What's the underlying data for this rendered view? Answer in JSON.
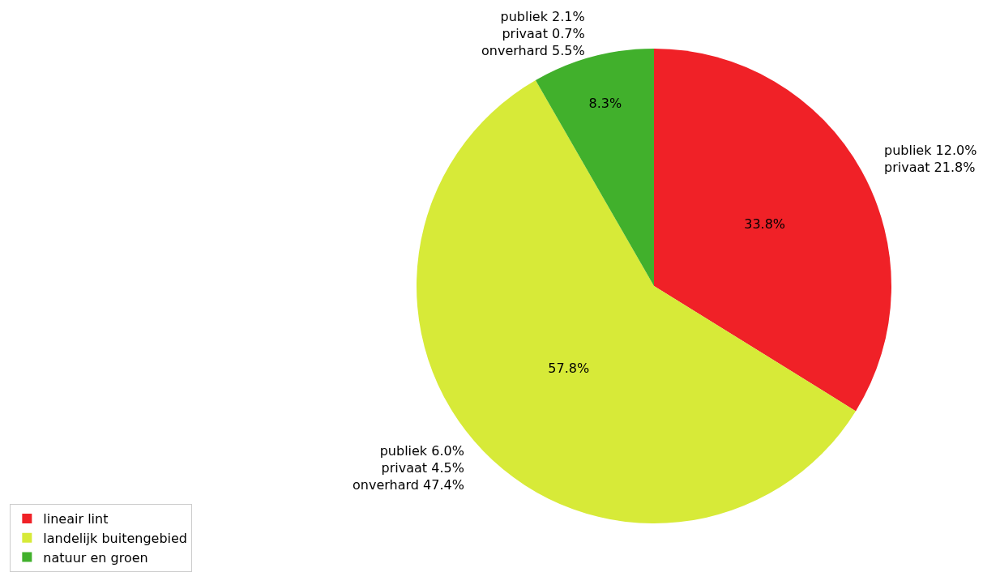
{
  "chart_data": {
    "type": "pie",
    "categories": [
      "lineair lint",
      "landelijk buitengebied",
      "natuur en groen"
    ],
    "values": [
      33.8,
      57.8,
      8.3
    ],
    "colors": [
      "#f02127",
      "#d7ea38",
      "#41b02c"
    ],
    "value_labels": [
      "33.8%",
      "57.8%",
      "8.3%"
    ],
    "legend": "bottom left",
    "annotations": [
      "publiek 12.0%\nprivaat 21.8%",
      "publiek 6.0%\nprivaat 4.5%\nonverhard 47.4%",
      "publiek 2.1%\nprivaat 0.7%\nonverhard 5.5%"
    ]
  }
}
